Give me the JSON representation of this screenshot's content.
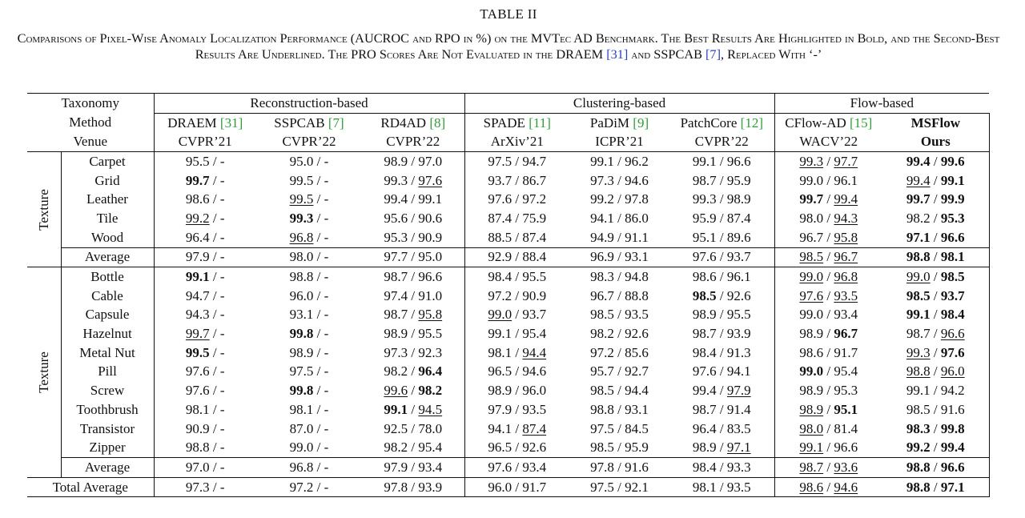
{
  "table_label": "TABLE II",
  "caption": {
    "part1": "Comparisons of Pixel-Wise Anomaly Localization Performance (AUCROC and RPO in %) on the MVTec AD Benchmark. The Best Results Are Highlighted in Bold, and the Second-Best Results Are Underlined. The PRO Scores Are Not Evaluated in the DRAEM ",
    "ref1": "[31]",
    "part2": " and SSPCAB ",
    "ref2": "[7]",
    "part3": ", Replaced With ‘-’"
  },
  "header": {
    "taxonomy_label": "Taxonomy",
    "method_label": "Method",
    "venue_label": "Venue",
    "groups": [
      "Reconstruction-based",
      "Clustering-based",
      "Flow-based"
    ],
    "methods": [
      {
        "name": "DRAEM ",
        "ref": "[31]",
        "venue": "CVPR’21"
      },
      {
        "name": "SSPCAB ",
        "ref": "[7]",
        "venue": "CVPR’22"
      },
      {
        "name": "RD4AD ",
        "ref": "[8]",
        "venue": "CVPR’22"
      },
      {
        "name": "SPADE ",
        "ref": "[11]",
        "venue": "ArXiv’21"
      },
      {
        "name": "PaDiM ",
        "ref": "[9]",
        "venue": "ICPR’21"
      },
      {
        "name": "PatchCore ",
        "ref": "[12]",
        "venue": "CVPR’22"
      },
      {
        "name": "CFlow-AD ",
        "ref": "[15]",
        "venue": "WACV’22"
      },
      {
        "name": "MSFlow",
        "ref": "",
        "venue": "Ours"
      }
    ]
  },
  "sections": [
    {
      "group_label": "Texture",
      "rows": [
        {
          "category": "Carpet",
          "cells": [
            [
              "95.5",
              "n",
              "-",
              "n"
            ],
            [
              "95.0",
              "n",
              "-",
              "n"
            ],
            [
              "98.9",
              "n",
              "97.0",
              "n"
            ],
            [
              "97.5",
              "n",
              "94.7",
              "n"
            ],
            [
              "99.1",
              "n",
              "96.2",
              "n"
            ],
            [
              "99.1",
              "n",
              "96.6",
              "n"
            ],
            [
              "99.3",
              "u",
              "97.7",
              "u"
            ],
            [
              "99.4",
              "b",
              "99.6",
              "b"
            ]
          ]
        },
        {
          "category": "Grid",
          "cells": [
            [
              "99.7",
              "b",
              "-",
              "n"
            ],
            [
              "99.5",
              "n",
              "-",
              "n"
            ],
            [
              "99.3",
              "n",
              "97.6",
              "u"
            ],
            [
              "93.7",
              "n",
              "86.7",
              "n"
            ],
            [
              "97.3",
              "n",
              "94.6",
              "n"
            ],
            [
              "98.7",
              "n",
              "95.9",
              "n"
            ],
            [
              "99.0",
              "n",
              "96.1",
              "n"
            ],
            [
              "99.4",
              "u",
              "99.1",
              "b"
            ]
          ]
        },
        {
          "category": "Leather",
          "cells": [
            [
              "98.6",
              "n",
              "-",
              "n"
            ],
            [
              "99.5",
              "u",
              "-",
              "n"
            ],
            [
              "99.4",
              "n",
              "99.1",
              "n"
            ],
            [
              "97.6",
              "n",
              "97.2",
              "n"
            ],
            [
              "99.2",
              "n",
              "97.8",
              "n"
            ],
            [
              "99.3",
              "n",
              "98.9",
              "n"
            ],
            [
              "99.7",
              "b",
              "99.4",
              "u"
            ],
            [
              "99.7",
              "b",
              "99.9",
              "b"
            ]
          ]
        },
        {
          "category": "Tile",
          "cells": [
            [
              "99.2",
              "u",
              "-",
              "n"
            ],
            [
              "99.3",
              "b",
              "-",
              "n"
            ],
            [
              "95.6",
              "n",
              "90.6",
              "n"
            ],
            [
              "87.4",
              "n",
              "75.9",
              "n"
            ],
            [
              "94.1",
              "n",
              "86.0",
              "n"
            ],
            [
              "95.9",
              "n",
              "87.4",
              "n"
            ],
            [
              "98.0",
              "n",
              "94.3",
              "u"
            ],
            [
              "98.2",
              "n",
              "95.3",
              "b"
            ]
          ]
        },
        {
          "category": "Wood",
          "cells": [
            [
              "96.4",
              "n",
              "-",
              "n"
            ],
            [
              "96.8",
              "u",
              "-",
              "n"
            ],
            [
              "95.3",
              "n",
              "90.9",
              "n"
            ],
            [
              "88.5",
              "n",
              "87.4",
              "n"
            ],
            [
              "94.9",
              "n",
              "91.1",
              "n"
            ],
            [
              "95.1",
              "n",
              "89.6",
              "n"
            ],
            [
              "96.7",
              "n",
              "95.8",
              "u"
            ],
            [
              "97.1",
              "b",
              "96.6",
              "b"
            ]
          ]
        }
      ],
      "average": {
        "category": "Average",
        "cells": [
          [
            "97.9",
            "n",
            "-",
            "n"
          ],
          [
            "98.0",
            "n",
            "-",
            "n"
          ],
          [
            "97.7",
            "n",
            "95.0",
            "n"
          ],
          [
            "92.9",
            "n",
            "88.4",
            "n"
          ],
          [
            "96.9",
            "n",
            "93.1",
            "n"
          ],
          [
            "97.6",
            "n",
            "93.7",
            "n"
          ],
          [
            "98.5",
            "u",
            "96.7",
            "u"
          ],
          [
            "98.8",
            "b",
            "98.1",
            "b"
          ]
        ]
      }
    },
    {
      "group_label": "Texture",
      "rows": [
        {
          "category": "Bottle",
          "cells": [
            [
              "99.1",
              "b",
              "-",
              "n"
            ],
            [
              "98.8",
              "n",
              "-",
              "n"
            ],
            [
              "98.7",
              "n",
              "96.6",
              "n"
            ],
            [
              "98.4",
              "n",
              "95.5",
              "n"
            ],
            [
              "98.3",
              "n",
              "94.8",
              "n"
            ],
            [
              "98.6",
              "n",
              "96.1",
              "n"
            ],
            [
              "99.0",
              "u",
              "96.8",
              "u"
            ],
            [
              "99.0",
              "u",
              "98.5",
              "b"
            ]
          ]
        },
        {
          "category": "Cable",
          "cells": [
            [
              "94.7",
              "n",
              "-",
              "n"
            ],
            [
              "96.0",
              "n",
              "-",
              "n"
            ],
            [
              "97.4",
              "n",
              "91.0",
              "n"
            ],
            [
              "97.2",
              "n",
              "90.9",
              "n"
            ],
            [
              "96.7",
              "n",
              "88.8",
              "n"
            ],
            [
              "98.5",
              "b",
              "92.6",
              "n"
            ],
            [
              "97.6",
              "u",
              "93.5",
              "u"
            ],
            [
              "98.5",
              "b",
              "93.7",
              "b"
            ]
          ]
        },
        {
          "category": "Capsule",
          "cells": [
            [
              "94.3",
              "n",
              "-",
              "n"
            ],
            [
              "93.1",
              "n",
              "-",
              "n"
            ],
            [
              "98.7",
              "n",
              "95.8",
              "u"
            ],
            [
              "99.0",
              "u",
              "93.7",
              "n"
            ],
            [
              "98.5",
              "n",
              "93.5",
              "n"
            ],
            [
              "98.9",
              "n",
              "95.5",
              "n"
            ],
            [
              "99.0",
              "n",
              "93.4",
              "n"
            ],
            [
              "99.1",
              "b",
              "98.4",
              "b"
            ]
          ]
        },
        {
          "category": "Hazelnut",
          "cells": [
            [
              "99.7",
              "u",
              "-",
              "n"
            ],
            [
              "99.8",
              "b",
              "-",
              "n"
            ],
            [
              "98.9",
              "n",
              "95.5",
              "n"
            ],
            [
              "99.1",
              "n",
              "95.4",
              "n"
            ],
            [
              "98.2",
              "n",
              "92.6",
              "n"
            ],
            [
              "98.7",
              "n",
              "93.9",
              "n"
            ],
            [
              "98.9",
              "n",
              "96.7",
              "b"
            ],
            [
              "98.7",
              "n",
              "96.6",
              "u"
            ]
          ]
        },
        {
          "category": "Metal Nut",
          "cells": [
            [
              "99.5",
              "b",
              "-",
              "n"
            ],
            [
              "98.9",
              "n",
              "-",
              "n"
            ],
            [
              "97.3",
              "n",
              "92.3",
              "n"
            ],
            [
              "98.1",
              "n",
              "94.4",
              "u"
            ],
            [
              "97.2",
              "n",
              "85.6",
              "n"
            ],
            [
              "98.4",
              "n",
              "91.3",
              "n"
            ],
            [
              "98.6",
              "n",
              "91.7",
              "n"
            ],
            [
              "99.3",
              "u",
              "97.6",
              "b"
            ]
          ]
        },
        {
          "category": "Pill",
          "cells": [
            [
              "97.6",
              "n",
              "-",
              "n"
            ],
            [
              "97.5",
              "n",
              "-",
              "n"
            ],
            [
              "98.2",
              "n",
              "96.4",
              "b"
            ],
            [
              "96.5",
              "n",
              "94.6",
              "n"
            ],
            [
              "95.7",
              "n",
              "92.7",
              "n"
            ],
            [
              "97.6",
              "n",
              "94.1",
              "n"
            ],
            [
              "99.0",
              "b",
              "95.4",
              "n"
            ],
            [
              "98.8",
              "u",
              "96.0",
              "u"
            ]
          ]
        },
        {
          "category": "Screw",
          "cells": [
            [
              "97.6",
              "n",
              "-",
              "n"
            ],
            [
              "99.8",
              "b",
              "-",
              "n"
            ],
            [
              "99.6",
              "u",
              "98.2",
              "b"
            ],
            [
              "98.9",
              "n",
              "96.0",
              "n"
            ],
            [
              "98.5",
              "n",
              "94.4",
              "n"
            ],
            [
              "99.4",
              "n",
              "97.9",
              "u"
            ],
            [
              "98.9",
              "n",
              "95.3",
              "n"
            ],
            [
              "99.1",
              "n",
              "94.2",
              "n"
            ]
          ]
        },
        {
          "category": "Toothbrush",
          "cells": [
            [
              "98.1",
              "n",
              "-",
              "n"
            ],
            [
              "98.1",
              "n",
              "-",
              "n"
            ],
            [
              "99.1",
              "b",
              "94.5",
              "u"
            ],
            [
              "97.9",
              "n",
              "93.5",
              "n"
            ],
            [
              "98.8",
              "n",
              "93.1",
              "n"
            ],
            [
              "98.7",
              "n",
              "91.4",
              "n"
            ],
            [
              "98.9",
              "u",
              "95.1",
              "b"
            ],
            [
              "98.5",
              "n",
              "91.6",
              "n"
            ]
          ]
        },
        {
          "category": "Transistor",
          "cells": [
            [
              "90.9",
              "n",
              "-",
              "n"
            ],
            [
              "87.0",
              "n",
              "-",
              "n"
            ],
            [
              "92.5",
              "n",
              "78.0",
              "n"
            ],
            [
              "94.1",
              "n",
              "87.4",
              "u"
            ],
            [
              "97.5",
              "n",
              "84.5",
              "n"
            ],
            [
              "96.4",
              "n",
              "83.5",
              "n"
            ],
            [
              "98.0",
              "u",
              "81.4",
              "n"
            ],
            [
              "98.3",
              "b",
              "99.8",
              "b"
            ]
          ]
        },
        {
          "category": "Zipper",
          "cells": [
            [
              "98.8",
              "n",
              "-",
              "n"
            ],
            [
              "99.0",
              "n",
              "-",
              "n"
            ],
            [
              "98.2",
              "n",
              "95.4",
              "n"
            ],
            [
              "96.5",
              "n",
              "92.6",
              "n"
            ],
            [
              "98.5",
              "n",
              "95.9",
              "n"
            ],
            [
              "98.9",
              "n",
              "97.1",
              "u"
            ],
            [
              "99.1",
              "u",
              "96.6",
              "n"
            ],
            [
              "99.2",
              "b",
              "99.4",
              "b"
            ]
          ]
        }
      ],
      "average": {
        "category": "Average",
        "cells": [
          [
            "97.0",
            "n",
            "-",
            "n"
          ],
          [
            "96.8",
            "n",
            "-",
            "n"
          ],
          [
            "97.9",
            "n",
            "93.4",
            "n"
          ],
          [
            "97.6",
            "n",
            "93.4",
            "n"
          ],
          [
            "97.8",
            "n",
            "91.6",
            "n"
          ],
          [
            "98.4",
            "n",
            "93.3",
            "n"
          ],
          [
            "98.7",
            "u",
            "93.6",
            "u"
          ],
          [
            "98.8",
            "b",
            "96.6",
            "b"
          ]
        ]
      }
    }
  ],
  "total": {
    "label": "Total Average",
    "cells": [
      [
        "97.3",
        "n",
        "-",
        "n"
      ],
      [
        "97.2",
        "n",
        "-",
        "n"
      ],
      [
        "97.8",
        "n",
        "93.9",
        "n"
      ],
      [
        "96.0",
        "n",
        "91.7",
        "n"
      ],
      [
        "97.5",
        "n",
        "92.1",
        "n"
      ],
      [
        "98.1",
        "n",
        "93.5",
        "n"
      ],
      [
        "98.6",
        "u",
        "94.6",
        "u"
      ],
      [
        "98.8",
        "b",
        "97.1",
        "b"
      ]
    ]
  },
  "separator": " / "
}
